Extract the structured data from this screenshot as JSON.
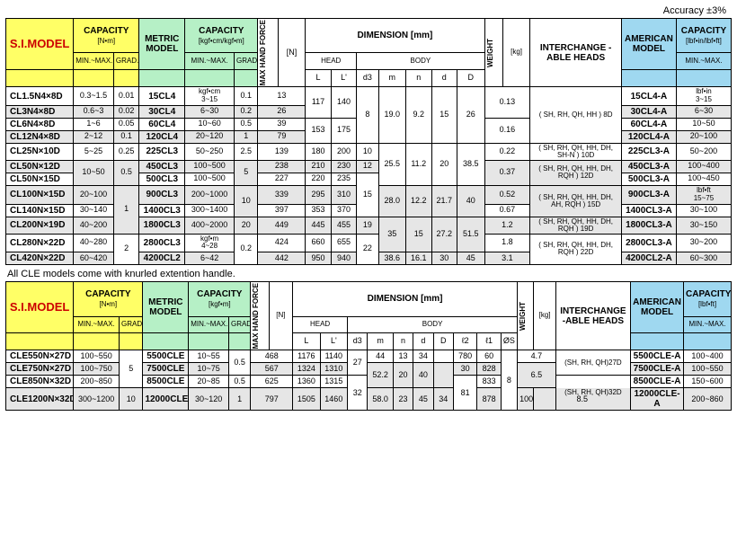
{
  "accuracy_note": "Accuracy ±3%",
  "headers": {
    "si_model": "S.I.MODEL",
    "capacity_nm": "CAPACITY",
    "capacity_nm_unit": "[N•m]",
    "min_max": "MIN.~MAX.",
    "grad": "GRAD.",
    "metric_model": "METRIC MODEL",
    "capacity_kgf": "CAPACITY",
    "capacity_kgf_unit": "[kgf•cm/kgf•m]",
    "capacity_kgfm_unit": "[kgf•m]",
    "max_hand_force": "MAX HAND FORCE",
    "n_unit": "[N]",
    "dimension": "DIMENSION [mm]",
    "head": "HEAD",
    "body": "BODY",
    "L": "L",
    "L1": "L'",
    "d3": "d3",
    "m": "m",
    "n": "n",
    "d": "d",
    "D": "D",
    "l2": "ℓ2",
    "l1": "ℓ1",
    "Ds": "ØS",
    "weight": "WEIGHT",
    "kg_unit": "[kg]",
    "interchange": "INTERCHANGE -ABLE HEADS",
    "american_model": "AMERICAN MODEL",
    "capacity_lbf": "CAPACITY",
    "capacity_lbf_unit": "[lbf•in/lbf•ft]",
    "capacity_lbfft_unit": "[lbf•ft]"
  },
  "t1": {
    "rows": [
      {
        "si": "CL1.5N4×8D",
        "nm": "0.3~1.5",
        "g": "0.01",
        "mm": "15CL4",
        "kgf": "kgf•cm\n3~15",
        "kg_g": "0.1",
        "f": "13",
        "L": "117",
        "L1": "140",
        "d3": "8",
        "m": "19.0",
        "n": "9.2",
        "d": "15",
        "D": "26",
        "w": "0.13",
        "ih": "( SH, RH, QH, HH ) 8D",
        "am": "15CL4-A",
        "lbf": "lbf•in\n3~15",
        "shade": false
      },
      {
        "si": "CL3N4×8D",
        "nm": "0.6~3",
        "g": "0.02",
        "mm": "30CL4",
        "kgf": "6~30",
        "kg_g": "0.2",
        "f": "26",
        "am": "30CL4-A",
        "lbf": "6~30",
        "shade": true
      },
      {
        "si": "CL6N4×8D",
        "nm": "1~6",
        "g": "0.05",
        "mm": "60CL4",
        "kgf": "10~60",
        "kg_g": "0.5",
        "f": "39",
        "L": "153",
        "L1": "175",
        "w": "0.16",
        "am": "60CL4-A",
        "lbf": "10~50",
        "shade": false
      },
      {
        "si": "CL12N4×8D",
        "nm": "2~12",
        "g": "0.1",
        "mm": "120CL4",
        "kgf": "20~120",
        "kg_g": "1",
        "f": "79",
        "am": "120CL4-A",
        "lbf": "20~100",
        "shade": true
      },
      {
        "si": "CL25N×10D",
        "nm": "5~25",
        "g": "0.25",
        "mm": "225CL3",
        "kgf": "50~250",
        "kg_g": "2.5",
        "f": "139",
        "L": "180",
        "L1": "200",
        "d3": "10",
        "w": "0.22",
        "ih": "( SH, RH, QH, HH, DH, SH-N ) 10D",
        "am": "225CL3-A",
        "lbf": "50~200",
        "shade": false
      },
      {
        "si": "CL50N×12D",
        "nm": "10~50",
        "g": "0.5",
        "mm": "450CL3",
        "kgf": "100~500",
        "kg_g": "5",
        "f": "238",
        "L": "210",
        "L1": "230",
        "d3": "12",
        "m": "25.5",
        "n": "11.2",
        "d": "20",
        "D": "38.5",
        "w": "0.37",
        "ih": "( SH, RH, QH, HH, DH, RQH ) 12D",
        "am": "450CL3-A",
        "lbf": "100~400",
        "shade": true
      },
      {
        "si": "CL50N×15D",
        "mm": "500CL3",
        "kgf": "100~500",
        "f": "227",
        "L": "220",
        "L1": "235",
        "am": "500CL3-A",
        "lbf": "100~450",
        "shade": false
      },
      {
        "si": "CL100N×15D",
        "nm": "20~100",
        "g": "1",
        "mm": "900CL3",
        "kgf": "200~1000",
        "kg_g": "10",
        "f": "339",
        "L": "295",
        "L1": "310",
        "d3": "15",
        "m": "28.0",
        "n": "12.2",
        "d": "21.7",
        "D": "40",
        "w": "0.52",
        "ih": "( SH, RH, QH, HH, DH, AH, RQH ) 15D",
        "am": "900CL3-A",
        "lbf": "lbf•ft\n15~75",
        "shade": true
      },
      {
        "si": "CL140N×15D",
        "nm": "30~140",
        "mm": "1400CL3",
        "kgf": "300~1400",
        "f": "397",
        "L": "353",
        "L1": "370",
        "w": "0.67",
        "am": "1400CL3-A",
        "lbf": "30~100",
        "shade": false
      },
      {
        "si": "CL200N×19D",
        "nm": "40~200",
        "mm": "1800CL3",
        "kgf": "400~2000",
        "kg_g": "20",
        "f": "449",
        "L": "445",
        "L1": "455",
        "d3": "19",
        "m": "35",
        "n": "15",
        "d": "27.2",
        "D": "51.5",
        "w": "1.2",
        "ih": "( SH, RH, QH, HH, DH, RQH ) 19D",
        "am": "1800CL3-A",
        "lbf": "30~150",
        "shade": true
      },
      {
        "si": "CL280N×22D",
        "nm": "40~280",
        "g": "2",
        "mm": "2800CL3",
        "kgf": "kgf•m\n4~28",
        "kg_g": "0.2",
        "f": "424",
        "L": "660",
        "L1": "655",
        "d3": "22",
        "w": "1.8",
        "ih": "( SH, RH, QH, HH, DH, RQH ) 22D",
        "am": "2800CL3-A",
        "lbf": "30~200",
        "shade": false
      },
      {
        "si": "CL420N×22D",
        "nm": "60~420",
        "mm": "4200CL2",
        "kgf": "6~42",
        "f": "442",
        "L": "950",
        "L1": "940",
        "m": "38.6",
        "n": "16.1",
        "d": "30",
        "D": "45",
        "w": "3.1",
        "am": "4200CL2-A",
        "lbf": "60~300",
        "shade": true
      }
    ]
  },
  "note": "All CLE models come with knurled extention handle.",
  "t2": {
    "rows": [
      {
        "si": "CLE550N×27D",
        "nm": "100~550",
        "g": "5",
        "mm": "5500CLE",
        "kgf": "10~55",
        "kg_g": "0.5",
        "f": "468",
        "L": "1176",
        "L1": "1140",
        "d3": "27",
        "m": "44",
        "n": "13",
        "d": "34",
        "D": "",
        "l2": "780",
        "l1": "60",
        "Ds": "",
        "w": "4.7",
        "ih": "(SH, RH, QH)27D",
        "am": "5500CLE-A",
        "lbf": "100~400",
        "shade": false
      },
      {
        "si": "CLE750N×27D",
        "nm": "100~750",
        "mm": "7500CLE",
        "kgf": "10~75",
        "f": "567",
        "L": "1324",
        "L1": "1310",
        "m": "52.2",
        "n": "20",
        "d": "40",
        "D": "",
        "l2": "30",
        "l1": "828",
        "Ds": "81",
        "ext": "8",
        "w": "6.5",
        "am": "7500CLE-A",
        "lbf": "100~550",
        "shade": true
      },
      {
        "si": "CLE850N×32D",
        "nm": "200~850",
        "mm": "8500CLE",
        "kgf": "20~85",
        "kg_g": "0.5",
        "f": "625",
        "L": "1360",
        "L1": "1315",
        "d3": "32",
        "l1": "833",
        "ih": "(SH, RH, QH)32D",
        "am": "8500CLE-A",
        "lbf": "150~600",
        "shade": false
      },
      {
        "si": "CLE1200N×32D",
        "nm": "300~1200",
        "g": "10",
        "mm": "12000CLE",
        "kgf": "30~120",
        "kg_g": "1",
        "f": "797",
        "L": "1505",
        "L1": "1460",
        "m": "58.0",
        "n": "23",
        "d": "45",
        "D": "34",
        "l2": "878",
        "l1": "100",
        "w": "8.5",
        "am": "12000CLE-A",
        "lbf": "200~860",
        "shade": true
      }
    ]
  }
}
